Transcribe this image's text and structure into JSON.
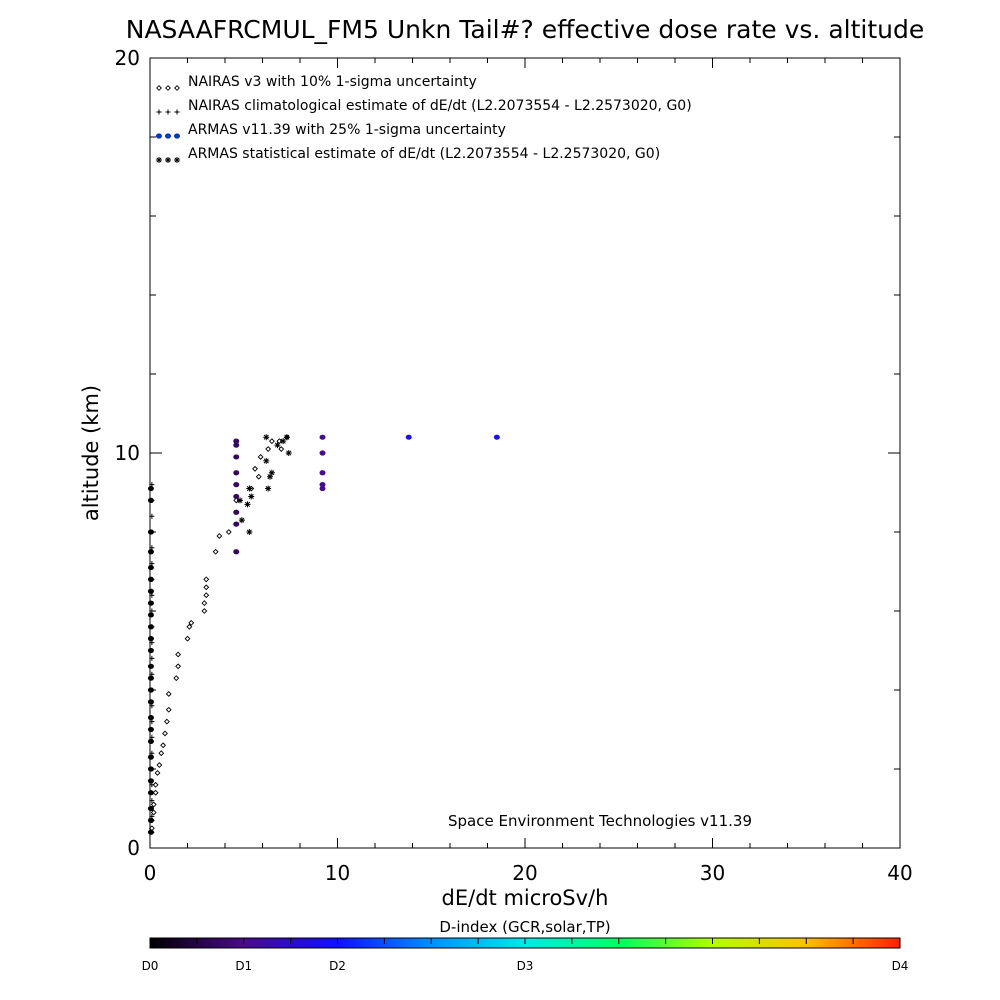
{
  "chart_data": {
    "type": "scatter",
    "title": "NASAAFRCMUL_FM5 Unkn Tail#? effective dose rate vs. altitude",
    "xlabel": "dE/dt microSv/h",
    "ylabel": "altitude (km)",
    "xlim": [
      0,
      40
    ],
    "ylim": [
      0,
      20
    ],
    "x_ticks": [
      0,
      10,
      20,
      30,
      40
    ],
    "y_ticks": [
      0,
      10,
      20
    ],
    "x_tick_labels": [
      "0",
      "10",
      "20",
      "30",
      "40"
    ],
    "y_tick_labels": [
      "0",
      "10",
      "20"
    ],
    "annotation": "Space Environment Technologies v11.39",
    "legend_position": "top-left",
    "legend": [
      {
        "marker": "diamond",
        "label": "NAIRAS v3 with 10% 1-sigma uncertainty"
      },
      {
        "marker": "plus",
        "label": "NAIRAS climatological estimate of dE/dt (L2.2073554 - L2.2573020, G0)"
      },
      {
        "marker": "dot",
        "color": "#0033cc",
        "label": "ARMAS v11.39 with 25% 1-sigma uncertainty"
      },
      {
        "marker": "asterisk",
        "label": "ARMAS statistical estimate of dE/dt (L2.2073554 - L2.2573020, G0)"
      }
    ],
    "series": [
      {
        "name": "NAIRAS v3 with 10% 1-sigma uncertainty",
        "marker": "diamond",
        "points": [
          [
            0.1,
            0.5
          ],
          [
            0.1,
            0.7
          ],
          [
            0.2,
            0.9
          ],
          [
            0.2,
            1.1
          ],
          [
            0.3,
            1.4
          ],
          [
            0.3,
            1.6
          ],
          [
            0.4,
            1.9
          ],
          [
            0.5,
            2.1
          ],
          [
            0.6,
            2.4
          ],
          [
            0.7,
            2.6
          ],
          [
            0.8,
            2.9
          ],
          [
            0.9,
            3.2
          ],
          [
            1.0,
            3.5
          ],
          [
            1.0,
            3.9
          ],
          [
            1.4,
            4.3
          ],
          [
            1.5,
            4.6
          ],
          [
            1.5,
            4.9
          ],
          [
            2.0,
            5.3
          ],
          [
            2.1,
            5.6
          ],
          [
            2.2,
            5.7
          ],
          [
            2.9,
            6.0
          ],
          [
            2.9,
            6.2
          ],
          [
            3.0,
            6.4
          ],
          [
            3.0,
            6.6
          ],
          [
            3.0,
            6.8
          ],
          [
            3.5,
            7.5
          ],
          [
            3.7,
            7.9
          ],
          [
            4.2,
            8.0
          ],
          [
            4.6,
            8.8
          ],
          [
            5.4,
            9.1
          ],
          [
            5.6,
            9.6
          ],
          [
            5.8,
            9.4
          ],
          [
            5.9,
            9.9
          ],
          [
            6.3,
            10.1
          ],
          [
            6.5,
            10.3
          ],
          [
            6.9,
            10.3
          ],
          [
            7.0,
            10.1
          ],
          [
            7.3,
            10.4
          ]
        ]
      },
      {
        "name": "NAIRAS climatological estimate of dE/dt (L2.2073554 - L2.2573020, G0)",
        "marker": "plus",
        "points": [
          [
            0.1,
            0.4
          ],
          [
            0.1,
            0.8
          ],
          [
            0.1,
            1.2
          ],
          [
            0.1,
            1.6
          ],
          [
            0.1,
            2.0
          ],
          [
            0.1,
            2.4
          ],
          [
            0.1,
            2.8
          ],
          [
            0.1,
            3.2
          ],
          [
            0.1,
            3.6
          ],
          [
            0.1,
            4.0
          ],
          [
            0.1,
            4.4
          ],
          [
            0.1,
            4.8
          ],
          [
            0.1,
            5.2
          ],
          [
            0.1,
            5.6
          ],
          [
            0.1,
            6.0
          ],
          [
            0.1,
            6.4
          ],
          [
            0.1,
            6.8
          ],
          [
            0.1,
            7.2
          ],
          [
            0.1,
            7.6
          ],
          [
            0.1,
            8.0
          ],
          [
            0.1,
            8.4
          ],
          [
            0.1,
            8.8
          ],
          [
            0.1,
            9.2
          ]
        ]
      },
      {
        "name": "ARMAS v11.39 with 25% 1-sigma uncertainty",
        "marker": "dot",
        "points": [
          {
            "x": 0.05,
            "y": 0.4,
            "c": 0
          },
          {
            "x": 0.05,
            "y": 0.7,
            "c": 0
          },
          {
            "x": 0.05,
            "y": 1.0,
            "c": 0
          },
          {
            "x": 0.05,
            "y": 1.4,
            "c": 0
          },
          {
            "x": 0.05,
            "y": 1.7,
            "c": 0
          },
          {
            "x": 0.05,
            "y": 2.0,
            "c": 0
          },
          {
            "x": 0.05,
            "y": 2.3,
            "c": 0
          },
          {
            "x": 0.05,
            "y": 2.7,
            "c": 0
          },
          {
            "x": 0.05,
            "y": 3.0,
            "c": 0
          },
          {
            "x": 0.05,
            "y": 3.3,
            "c": 0
          },
          {
            "x": 0.05,
            "y": 3.7,
            "c": 0
          },
          {
            "x": 0.05,
            "y": 4.0,
            "c": 0
          },
          {
            "x": 0.05,
            "y": 4.3,
            "c": 0
          },
          {
            "x": 0.05,
            "y": 4.6,
            "c": 0
          },
          {
            "x": 0.05,
            "y": 5.0,
            "c": 0
          },
          {
            "x": 0.05,
            "y": 5.3,
            "c": 0
          },
          {
            "x": 0.05,
            "y": 5.6,
            "c": 0
          },
          {
            "x": 0.05,
            "y": 5.9,
            "c": 0
          },
          {
            "x": 0.05,
            "y": 6.2,
            "c": 0
          },
          {
            "x": 0.05,
            "y": 6.5,
            "c": 0
          },
          {
            "x": 0.05,
            "y": 6.8,
            "c": 0
          },
          {
            "x": 0.05,
            "y": 7.1,
            "c": 0
          },
          {
            "x": 0.05,
            "y": 7.5,
            "c": 0
          },
          {
            "x": 0.05,
            "y": 8.0,
            "c": 0
          },
          {
            "x": 0.05,
            "y": 8.8,
            "c": 0
          },
          {
            "x": 0.05,
            "y": 9.1,
            "c": 0
          },
          {
            "x": 4.6,
            "y": 7.5,
            "c": 0.7
          },
          {
            "x": 4.6,
            "y": 8.2,
            "c": 0.7
          },
          {
            "x": 4.6,
            "y": 8.5,
            "c": 0.7
          },
          {
            "x": 4.6,
            "y": 8.9,
            "c": 0.7
          },
          {
            "x": 4.6,
            "y": 9.2,
            "c": 0.7
          },
          {
            "x": 4.6,
            "y": 9.5,
            "c": 0.7
          },
          {
            "x": 4.6,
            "y": 9.9,
            "c": 0.7
          },
          {
            "x": 4.6,
            "y": 10.2,
            "c": 0.7
          },
          {
            "x": 4.6,
            "y": 10.3,
            "c": 0.7
          },
          {
            "x": 9.2,
            "y": 9.1,
            "c": 1.05
          },
          {
            "x": 9.2,
            "y": 9.2,
            "c": 1.05
          },
          {
            "x": 9.2,
            "y": 9.5,
            "c": 1.05
          },
          {
            "x": 9.2,
            "y": 10.0,
            "c": 1.05
          },
          {
            "x": 9.2,
            "y": 10.4,
            "c": 1.05
          },
          {
            "x": 13.8,
            "y": 10.4,
            "c": 1.8
          },
          {
            "x": 18.5,
            "y": 10.4,
            "c": 1.9
          }
        ]
      },
      {
        "name": "ARMAS statistical estimate of dE/dt (L2.2073554 - L2.2573020, G0)",
        "marker": "asterisk",
        "points": [
          [
            5.3,
            8.0
          ],
          [
            4.9,
            8.3
          ],
          [
            5.2,
            8.7
          ],
          [
            4.8,
            8.8
          ],
          [
            5.4,
            8.9
          ],
          [
            5.3,
            9.1
          ],
          [
            6.3,
            9.1
          ],
          [
            6.4,
            9.4
          ],
          [
            6.5,
            9.5
          ],
          [
            6.2,
            9.8
          ],
          [
            7.4,
            10.0
          ],
          [
            6.8,
            10.2
          ],
          [
            7.1,
            10.3
          ],
          [
            7.3,
            10.4
          ],
          [
            6.2,
            10.4
          ]
        ]
      }
    ],
    "colorbar": {
      "title": "D-index (GCR,solar,TP)",
      "labels": [
        "D0",
        "D1",
        "D2",
        "D3",
        "D4"
      ],
      "label_positions": [
        0,
        1,
        2,
        4,
        8
      ]
    }
  }
}
